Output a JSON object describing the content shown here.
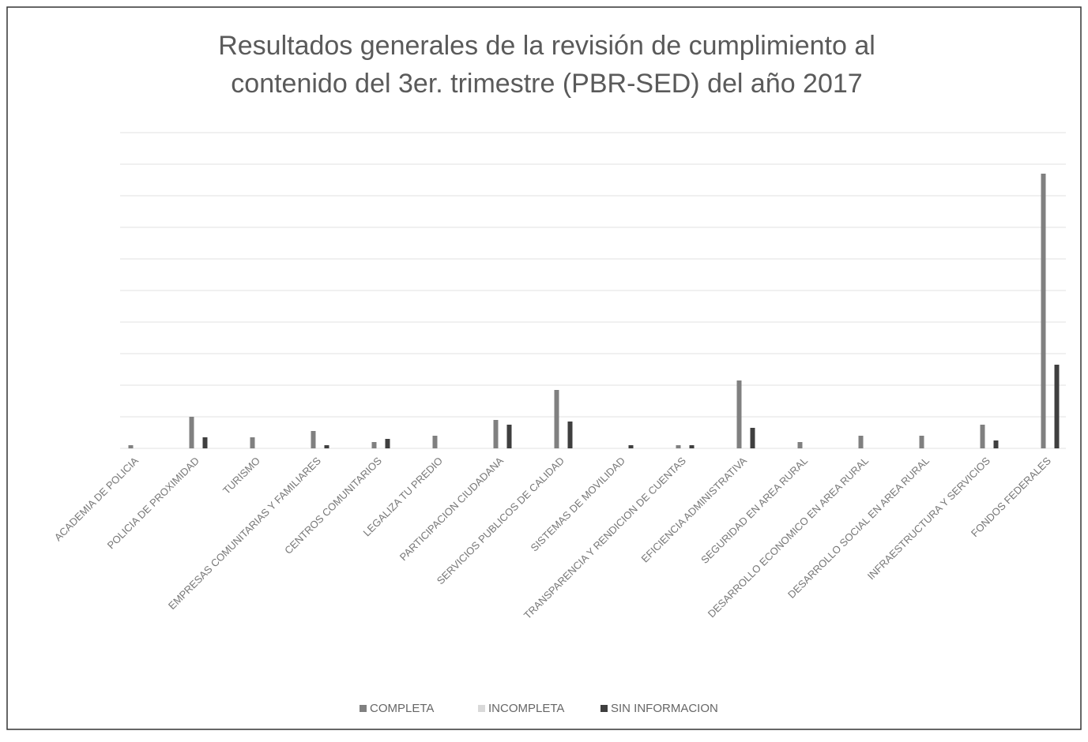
{
  "chart_data": {
    "type": "bar",
    "title": [
      "Resultados generales de la revisión de cumplimiento al",
      "contenido del 3er. trimestre (PBR-SED) del año 2017"
    ],
    "categories": [
      "ACADEMIA DE POLICIA",
      "POLICIA DE PROXIMIDAD",
      "TURISMO",
      "EMPRESAS COMUNITARIAS Y FAMILIARES",
      "CENTROS COMUNITARIOS",
      "LEGALIZA TU PREDIO",
      "PARTICIPACION CIUDADANA",
      "SERVICIOS PUBLICOS DE CALIDAD",
      "SISTEMAS DE MOVILIDAD",
      "TRANSPARENCIA Y RENDICION DE CUENTAS",
      "EFICIENCIA ADMINISTRATIVA",
      "SEGURIDAD EN AREA RURAL",
      "DESARROLLO ECONOMICO EN AREA RURAL",
      "DESARROLLO SOCIAL EN AREA RURAL",
      "INFRAESTRUCTURA Y SERVICIOS",
      "FONDOS FEDERALES"
    ],
    "series": [
      {
        "name": "COMPLETA",
        "color": "#808080",
        "values": [
          0.1,
          1.0,
          0.35,
          0.55,
          0.2,
          0.4,
          0.9,
          1.85,
          0,
          0.1,
          2.15,
          0.2,
          0.4,
          0.4,
          0.75,
          8.7
        ]
      },
      {
        "name": "INCOMPLETA",
        "color": "#d9d9d9",
        "values": [
          0,
          0,
          0,
          0,
          0,
          0,
          0,
          0,
          0,
          0,
          0,
          0,
          0,
          0,
          0,
          0
        ]
      },
      {
        "name": "SIN INFORMACION",
        "color": "#3f3f3f",
        "values": [
          0,
          0.35,
          0,
          0.1,
          0.3,
          0,
          0.75,
          0.85,
          0.1,
          0.1,
          0.65,
          0,
          0,
          0,
          0.25,
          2.65
        ]
      }
    ],
    "ylim": [
      0,
      10
    ],
    "yticks": [
      0,
      1,
      2,
      3,
      4,
      5,
      6,
      7,
      8,
      9,
      10
    ],
    "grid": true,
    "legend": "bottom"
  }
}
